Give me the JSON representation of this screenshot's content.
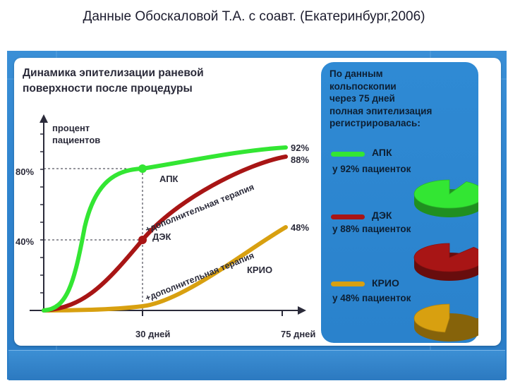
{
  "header": {
    "text": "Данные Обоскаловой Т.А. с соавт.  (Екатеринбург,2006)"
  },
  "chart_data": {
    "type": "line",
    "title": "Динамика эпителизации раневой поверхности после процедуры",
    "title_lines": [
      "Динамика эпителизации раневой",
      "поверхности после процедуры"
    ],
    "ylabel_lines": [
      "процент",
      "пациентов"
    ],
    "x_ticks": [
      "30 дней",
      "75 дней"
    ],
    "y_ticks": [
      "80%",
      "40%"
    ],
    "series": [
      {
        "name": "АПК",
        "color": "#33e633",
        "points": [
          [
            0,
            0
          ],
          [
            30,
            80
          ],
          [
            75,
            92
          ]
        ],
        "end_label": "92%"
      },
      {
        "name": "ДЭК",
        "color": "#a81515",
        "points": [
          [
            0,
            0
          ],
          [
            30,
            40
          ],
          [
            75,
            88
          ]
        ],
        "end_label": "88%"
      },
      {
        "name": "КРИО",
        "color": "#d8a010",
        "points": [
          [
            0,
            0
          ],
          [
            30,
            2
          ],
          [
            75,
            48
          ]
        ],
        "end_label": "48%"
      }
    ],
    "annotations": [
      {
        "text": "+дополнительная терапия",
        "near": "АПК"
      },
      {
        "text": "+дополнительная терапия",
        "near": "КРИО"
      }
    ],
    "legend_position": "right"
  },
  "info": {
    "title_lines": [
      "По данным",
      "кольпоскопии",
      "через 75 дней",
      "полная эпителизация",
      "регистрировалась:"
    ],
    "items": [
      {
        "name": "АПК",
        "pct": "у 92% пациенток",
        "color": "#33e633",
        "value": 92
      },
      {
        "name": "ДЭК",
        "pct": "у 88% пациенток",
        "color": "#a81515",
        "value": 88
      },
      {
        "name": "КРИО",
        "pct": "у 48% пациенток",
        "color": "#d8a010",
        "value": 48
      }
    ]
  }
}
